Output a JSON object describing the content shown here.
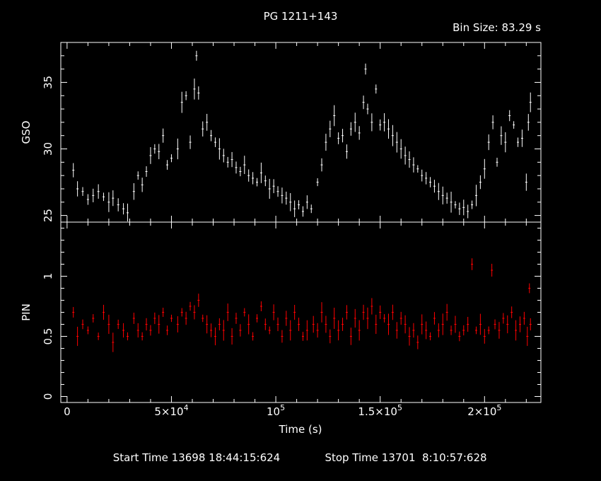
{
  "chart_data": {
    "type": "scatter",
    "title": "PG 1211+143",
    "bin_size_label": "Bin Size:  83.29  s",
    "xlabel": "Time (s)",
    "x_ticks": [
      {
        "value": 0,
        "label": "0"
      },
      {
        "value": 50000,
        "label": "5×10",
        "exp": "4"
      },
      {
        "value": 100000,
        "label": "10",
        "exp": "5"
      },
      {
        "value": 150000,
        "label": "1.5×10",
        "exp": "5"
      },
      {
        "value": 200000,
        "label": "2×10",
        "exp": "5"
      }
    ],
    "xlim": [
      -3000,
      227000
    ],
    "footer": {
      "start_time": "Start Time 13698 18:44:15:624",
      "stop_time": "Stop Time 13701  8:10:57:628"
    },
    "panels": [
      {
        "name": "GSO",
        "ylabel": "GSO",
        "color": "#ffffff",
        "ylim": [
          24.5,
          38
        ],
        "y_ticks": [
          {
            "value": 25,
            "label": "25"
          },
          {
            "value": 30,
            "label": "30"
          },
          {
            "value": 35,
            "label": "35"
          }
        ],
        "points": [
          [
            3000,
            28.4
          ],
          [
            5000,
            27.0
          ],
          [
            7500,
            26.8
          ],
          [
            10000,
            26.2
          ],
          [
            12500,
            26.5
          ],
          [
            15000,
            26.8
          ],
          [
            17500,
            26.4
          ],
          [
            20000,
            26.0
          ],
          [
            22000,
            26.3
          ],
          [
            24500,
            25.8
          ],
          [
            27000,
            25.5
          ],
          [
            29000,
            25.2
          ],
          [
            32000,
            26.8
          ],
          [
            34000,
            28.0
          ],
          [
            36000,
            27.3
          ],
          [
            38000,
            28.3
          ],
          [
            40000,
            29.5
          ],
          [
            42000,
            30.0
          ],
          [
            44000,
            29.8
          ],
          [
            46000,
            31.0
          ],
          [
            48000,
            28.8
          ],
          [
            50000,
            29.3
          ],
          [
            53000,
            30.0
          ],
          [
            55000,
            33.5
          ],
          [
            57000,
            34.0
          ],
          [
            59000,
            30.5
          ],
          [
            61000,
            34.5
          ],
          [
            62000,
            37.0
          ],
          [
            63000,
            34.2
          ],
          [
            65000,
            31.5
          ],
          [
            67000,
            32.0
          ],
          [
            69000,
            31.0
          ],
          [
            71000,
            30.5
          ],
          [
            73000,
            30.0
          ],
          [
            75000,
            29.5
          ],
          [
            77000,
            29.0
          ],
          [
            79000,
            29.2
          ],
          [
            81000,
            28.6
          ],
          [
            83000,
            28.3
          ],
          [
            85000,
            28.8
          ],
          [
            87000,
            28.0
          ],
          [
            89000,
            27.8
          ],
          [
            91000,
            27.5
          ],
          [
            93000,
            28.2
          ],
          [
            95000,
            27.6
          ],
          [
            97000,
            27.0
          ],
          [
            99000,
            27.2
          ],
          [
            101000,
            26.8
          ],
          [
            103000,
            26.5
          ],
          [
            105000,
            26.3
          ],
          [
            107000,
            26.0
          ],
          [
            109000,
            25.5
          ],
          [
            111000,
            25.8
          ],
          [
            113000,
            25.3
          ],
          [
            115000,
            26.0
          ],
          [
            117000,
            25.5
          ],
          [
            120000,
            27.5
          ],
          [
            122000,
            28.8
          ],
          [
            124000,
            30.5
          ],
          [
            126000,
            31.5
          ],
          [
            128000,
            32.5
          ],
          [
            130000,
            30.8
          ],
          [
            132000,
            31.0
          ],
          [
            134000,
            29.8
          ],
          [
            136000,
            31.5
          ],
          [
            138000,
            32.0
          ],
          [
            140000,
            31.2
          ],
          [
            142000,
            33.5
          ],
          [
            143000,
            36.0
          ],
          [
            144000,
            33.0
          ],
          [
            146000,
            32.0
          ],
          [
            148000,
            34.5
          ],
          [
            150000,
            31.8
          ],
          [
            152000,
            32.0
          ],
          [
            154000,
            31.5
          ],
          [
            156000,
            31.0
          ],
          [
            158000,
            30.5
          ],
          [
            160000,
            30.0
          ],
          [
            162000,
            29.5
          ],
          [
            164000,
            29.2
          ],
          [
            166000,
            28.8
          ],
          [
            168000,
            28.5
          ],
          [
            170000,
            28.0
          ],
          [
            172000,
            27.8
          ],
          [
            174000,
            27.5
          ],
          [
            176000,
            27.2
          ],
          [
            178000,
            26.8
          ],
          [
            180000,
            26.5
          ],
          [
            182000,
            26.3
          ],
          [
            184000,
            26.0
          ],
          [
            186000,
            25.8
          ],
          [
            188000,
            25.5
          ],
          [
            190000,
            25.6
          ],
          [
            192000,
            25.3
          ],
          [
            194000,
            25.8
          ],
          [
            196000,
            26.5
          ],
          [
            198000,
            27.5
          ],
          [
            200000,
            28.5
          ],
          [
            202000,
            30.5
          ],
          [
            204000,
            32.0
          ],
          [
            206000,
            29.0
          ],
          [
            208000,
            31.0
          ],
          [
            210000,
            30.5
          ],
          [
            212000,
            32.5
          ],
          [
            214000,
            31.8
          ],
          [
            216000,
            30.5
          ],
          [
            218000,
            30.8
          ],
          [
            220000,
            27.5
          ],
          [
            221000,
            32.0
          ],
          [
            222000,
            33.5
          ]
        ]
      },
      {
        "name": "PIN",
        "ylabel": "PIN",
        "color": "#ff0000",
        "ylim": [
          -0.05,
          1.45
        ],
        "y_ticks": [
          {
            "value": 0,
            "label": "0"
          },
          {
            "value": 0.5,
            "label": "0.5"
          },
          {
            "value": 1,
            "label": "1"
          }
        ],
        "points": [
          [
            3000,
            0.7
          ],
          [
            5000,
            0.5
          ],
          [
            7500,
            0.6
          ],
          [
            10000,
            0.55
          ],
          [
            12500,
            0.65
          ],
          [
            15000,
            0.5
          ],
          [
            17500,
            0.7
          ],
          [
            20000,
            0.6
          ],
          [
            22000,
            0.45
          ],
          [
            24500,
            0.6
          ],
          [
            27000,
            0.55
          ],
          [
            29000,
            0.5
          ],
          [
            32000,
            0.65
          ],
          [
            34000,
            0.55
          ],
          [
            36000,
            0.5
          ],
          [
            38000,
            0.6
          ],
          [
            40000,
            0.55
          ],
          [
            42000,
            0.65
          ],
          [
            44000,
            0.6
          ],
          [
            46000,
            0.7
          ],
          [
            48000,
            0.55
          ],
          [
            50000,
            0.65
          ],
          [
            53000,
            0.6
          ],
          [
            55000,
            0.7
          ],
          [
            57000,
            0.65
          ],
          [
            59000,
            0.75
          ],
          [
            61000,
            0.7
          ],
          [
            63000,
            0.8
          ],
          [
            65000,
            0.65
          ],
          [
            67000,
            0.6
          ],
          [
            69000,
            0.55
          ],
          [
            71000,
            0.5
          ],
          [
            73000,
            0.6
          ],
          [
            75000,
            0.55
          ],
          [
            77000,
            0.7
          ],
          [
            79000,
            0.5
          ],
          [
            81000,
            0.65
          ],
          [
            83000,
            0.55
          ],
          [
            85000,
            0.7
          ],
          [
            87000,
            0.6
          ],
          [
            89000,
            0.5
          ],
          [
            91000,
            0.65
          ],
          [
            93000,
            0.75
          ],
          [
            95000,
            0.6
          ],
          [
            97000,
            0.55
          ],
          [
            99000,
            0.7
          ],
          [
            101000,
            0.6
          ],
          [
            103000,
            0.5
          ],
          [
            105000,
            0.65
          ],
          [
            107000,
            0.55
          ],
          [
            109000,
            0.7
          ],
          [
            111000,
            0.6
          ],
          [
            113000,
            0.5
          ],
          [
            115000,
            0.55
          ],
          [
            118000,
            0.6
          ],
          [
            120000,
            0.55
          ],
          [
            122000,
            0.7
          ],
          [
            124000,
            0.6
          ],
          [
            126000,
            0.5
          ],
          [
            128000,
            0.65
          ],
          [
            130000,
            0.55
          ],
          [
            132000,
            0.6
          ],
          [
            134000,
            0.7
          ],
          [
            136000,
            0.5
          ],
          [
            138000,
            0.65
          ],
          [
            140000,
            0.55
          ],
          [
            142000,
            0.7
          ],
          [
            144000,
            0.65
          ],
          [
            146000,
            0.75
          ],
          [
            148000,
            0.6
          ],
          [
            150000,
            0.7
          ],
          [
            152000,
            0.65
          ],
          [
            154000,
            0.6
          ],
          [
            156000,
            0.7
          ],
          [
            158000,
            0.55
          ],
          [
            160000,
            0.65
          ],
          [
            162000,
            0.6
          ],
          [
            164000,
            0.5
          ],
          [
            166000,
            0.55
          ],
          [
            168000,
            0.45
          ],
          [
            170000,
            0.6
          ],
          [
            172000,
            0.55
          ],
          [
            174000,
            0.5
          ],
          [
            176000,
            0.65
          ],
          [
            178000,
            0.55
          ],
          [
            180000,
            0.6
          ],
          [
            182000,
            0.7
          ],
          [
            184000,
            0.55
          ],
          [
            186000,
            0.6
          ],
          [
            188000,
            0.5
          ],
          [
            190000,
            0.55
          ],
          [
            192000,
            0.6
          ],
          [
            194000,
            1.1
          ],
          [
            196000,
            0.55
          ],
          [
            198000,
            0.6
          ],
          [
            200000,
            0.5
          ],
          [
            202000,
            0.55
          ],
          [
            203500,
            1.05
          ],
          [
            205000,
            0.6
          ],
          [
            207000,
            0.55
          ],
          [
            209000,
            0.65
          ],
          [
            211000,
            0.6
          ],
          [
            213000,
            0.7
          ],
          [
            215000,
            0.55
          ],
          [
            217000,
            0.6
          ],
          [
            219000,
            0.65
          ],
          [
            220500,
            0.5
          ],
          [
            221500,
            0.9
          ],
          [
            222000,
            0.6
          ]
        ]
      }
    ]
  }
}
